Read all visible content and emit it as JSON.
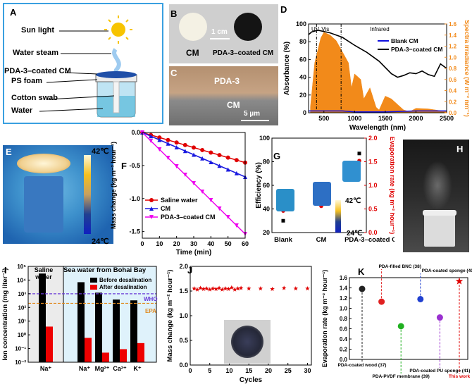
{
  "panels": {
    "a": {
      "letter": "A",
      "labels": [
        "Sun light",
        "Water steam",
        "PDA-3–coated CM",
        "PS foam",
        "Cotton swab",
        "Water"
      ]
    },
    "b": {
      "letter": "B",
      "scale": "1 cm",
      "left": "CM",
      "right": "PDA-3–coated CM"
    },
    "c": {
      "letter": "C",
      "top": "PDA-3",
      "bottom": "CM",
      "scale": "5 µm"
    },
    "d": {
      "letter": "D"
    },
    "e": {
      "letter": "E",
      "cb_top": "42℃",
      "cb_bottom": "24℃"
    },
    "f": {
      "letter": "F"
    },
    "g": {
      "letter": "G",
      "cb_top": "42℃",
      "cb_bottom": "24℃"
    },
    "h": {
      "letter": "H"
    },
    "i": {
      "letter": "I",
      "group1": "Saline water",
      "group2": "Sea water from Bohai Bay",
      "who": "WHO",
      "epa": "EPA"
    },
    "j": {
      "letter": "J"
    },
    "k": {
      "letter": "K"
    }
  },
  "chart_data": [
    {
      "id": "D",
      "type": "line",
      "xlabel": "Wavelength (nm)",
      "ylabel": "Absorbance (%)",
      "y2label": "Spectra irradiance (W m⁻² nm⁻¹)",
      "xlim": [
        250,
        2500
      ],
      "ylim": [
        0,
        100
      ],
      "y2lim": [
        0,
        1.6
      ],
      "xticks": [
        500,
        1000,
        1500,
        2000,
        2500
      ],
      "yticks": [
        0,
        20,
        40,
        60,
        80,
        100
      ],
      "y2ticks": [
        0.0,
        0.2,
        0.4,
        0.6,
        0.8,
        1.0,
        1.2,
        1.4,
        1.6
      ],
      "regions": [
        "UV",
        "Vis",
        "Infrared"
      ],
      "legend": [
        "Blank CM",
        "PDA-3−coated CM"
      ],
      "series": [
        {
          "name": "Blank CM",
          "color": "#1010e0",
          "x": [
            250,
            500,
            800,
            1000,
            1500,
            2000,
            2500
          ],
          "y": [
            2,
            2,
            2,
            1,
            1,
            2,
            2
          ]
        },
        {
          "name": "PDA-3−coated CM",
          "color": "#000000",
          "x": [
            250,
            300,
            400,
            600,
            800,
            1000,
            1200,
            1400,
            1600,
            1700,
            1800,
            1900,
            2000,
            2100,
            2200,
            2300,
            2400,
            2500
          ],
          "y": [
            88,
            91,
            93,
            90,
            85,
            76,
            68,
            58,
            44,
            40,
            42,
            45,
            44,
            47,
            43,
            41,
            55,
            50
          ]
        }
      ],
      "spectrum": {
        "color": "#f28a1a",
        "x": [
          280,
          350,
          450,
          500,
          600,
          700,
          800,
          900,
          950,
          1000,
          1100,
          1150,
          1250,
          1350,
          1400,
          1500,
          1600,
          1800,
          1900,
          2000,
          2200,
          2500
        ],
        "y": [
          0.1,
          0.9,
          1.35,
          1.45,
          1.4,
          1.3,
          1.1,
          0.9,
          0.45,
          0.7,
          0.6,
          0.25,
          0.45,
          0.1,
          0.05,
          0.3,
          0.25,
          0.05,
          0.02,
          0.08,
          0.07,
          0.02
        ]
      }
    },
    {
      "id": "F",
      "type": "line",
      "xlabel": "Time (min)",
      "ylabel": "Mass change (kg m⁻² hour⁻¹)",
      "xlim": [
        0,
        60
      ],
      "ylim": [
        -1.6,
        0
      ],
      "xticks": [
        0,
        10,
        20,
        30,
        40,
        50,
        60
      ],
      "yticks": [
        0.0,
        -0.5,
        -1.0,
        -1.5
      ],
      "series": [
        {
          "name": "Saline water",
          "color": "#e00000",
          "marker": "circle",
          "x": [
            0,
            5,
            10,
            15,
            20,
            25,
            30,
            35,
            40,
            45,
            50,
            55,
            60
          ],
          "y": [
            0,
            -0.038,
            -0.076,
            -0.114,
            -0.152,
            -0.19,
            -0.228,
            -0.266,
            -0.304,
            -0.342,
            -0.38,
            -0.418,
            -0.456
          ]
        },
        {
          "name": "CM",
          "color": "#1a1ae0",
          "marker": "triangle",
          "x": [
            0,
            5,
            10,
            15,
            20,
            25,
            30,
            35,
            40,
            45,
            50,
            55,
            60
          ],
          "y": [
            0,
            -0.056,
            -0.112,
            -0.168,
            -0.224,
            -0.28,
            -0.336,
            -0.392,
            -0.448,
            -0.504,
            -0.56,
            -0.616,
            -0.672
          ]
        },
        {
          "name": "PDA-3–coated CM",
          "color": "#ee00ee",
          "marker": "triangle-down",
          "x": [
            0,
            5,
            10,
            15,
            20,
            25,
            30,
            35,
            40,
            45,
            50,
            55,
            60
          ],
          "y": [
            0,
            -0.128,
            -0.256,
            -0.384,
            -0.512,
            -0.64,
            -0.768,
            -0.896,
            -1.024,
            -1.152,
            -1.28,
            -1.408,
            -1.536
          ]
        }
      ]
    },
    {
      "id": "G",
      "type": "scatter",
      "categories": [
        "Blank",
        "CM",
        "PDA-3–coated CM"
      ],
      "ylabel": "Efficiency (%)",
      "y2label": "Evaporation rate (kg m⁻² hour⁻¹)",
      "ylim": [
        20,
        100
      ],
      "y2lim": [
        0,
        2.0
      ],
      "yticks": [
        20,
        40,
        60,
        80,
        100
      ],
      "y2ticks": [
        0.0,
        0.5,
        1.0,
        1.5,
        2.0
      ],
      "series": [
        {
          "name": "Efficiency",
          "color": "#000000",
          "axis": "left",
          "values": [
            30,
            44,
            87
          ]
        },
        {
          "name": "Evaporation rate",
          "color": "#e00000",
          "axis": "right",
          "values": [
            0.46,
            0.56,
            1.52
          ]
        }
      ]
    },
    {
      "id": "I",
      "type": "bar",
      "log": true,
      "ylabel": "Ion concentration (mg liter⁻¹)",
      "categories": [
        "Na⁺",
        "Na⁺",
        "Mg²⁺",
        "Ca²⁺",
        "K⁺"
      ],
      "yticks": [
        "10⁻²",
        "10⁻¹",
        "10⁰",
        "10¹",
        "10²",
        "10³",
        "10⁴",
        "10⁵"
      ],
      "ylim": [
        0.01,
        100000
      ],
      "legend": [
        "Before desalination",
        "After desalination"
      ],
      "series": [
        {
          "name": "Before desalination",
          "color": "#000000",
          "values": [
            30000,
            7000,
            1200,
            380,
            330
          ]
        },
        {
          "name": "After desalination",
          "color": "#ee0000",
          "values": [
            4.0,
            0.6,
            0.05,
            0.09,
            0.25
          ]
        }
      ],
      "lines": [
        {
          "name": "WHO",
          "value": 1000,
          "color": "#6a3ad8"
        },
        {
          "name": "EPA",
          "value": 200,
          "color": "#e08a20"
        }
      ]
    },
    {
      "id": "J",
      "type": "scatter",
      "xlabel": "Cycles",
      "ylabel": "Mass change (kg m⁻² hour⁻¹)",
      "xlim": [
        0,
        31
      ],
      "ylim": [
        0,
        2.0
      ],
      "xticks": [
        0,
        5,
        10,
        15,
        20,
        25,
        30
      ],
      "yticks": [
        0.0,
        0.5,
        1.0,
        1.5,
        2.0
      ],
      "series": [
        {
          "name": "Mass change",
          "color": "#e00000",
          "x": [
            1,
            1.8,
            2.6,
            3.4,
            4.2,
            5,
            5.8,
            6.6,
            7.4,
            8.2,
            9,
            9.8,
            10.6,
            11.4,
            12.2,
            13,
            15,
            18,
            21,
            24,
            27,
            30
          ],
          "y": [
            1.55,
            1.53,
            1.56,
            1.54,
            1.55,
            1.53,
            1.55,
            1.54,
            1.56,
            1.53,
            1.55,
            1.54,
            1.57,
            1.53,
            1.55,
            1.56,
            1.55,
            1.55,
            1.54,
            1.56,
            1.55,
            1.55
          ]
        }
      ]
    },
    {
      "id": "K",
      "type": "scatter",
      "ylabel": "Evaporation rate (kg m⁻² hour⁻¹)",
      "ylim": [
        0,
        1.6
      ],
      "yticks": [
        0.0,
        0.2,
        0.4,
        0.6,
        0.8,
        1.0,
        1.2,
        1.4,
        1.6
      ],
      "points": [
        {
          "label": "PDA-coated wood (37)",
          "value": 1.38,
          "color": "#222222",
          "pos": "bottom"
        },
        {
          "label": "PDA-filled BNC (38)",
          "value": 1.13,
          "color": "#e02020",
          "pos": "top"
        },
        {
          "label": "PDA-PVDF membrane (39)",
          "value": 0.65,
          "color": "#20b020",
          "pos": "bottom"
        },
        {
          "label": "PDA-coated sponge (40)",
          "value": 1.18,
          "color": "#2040d0",
          "pos": "top"
        },
        {
          "label": "PDA-coated PU sponge (41)",
          "value": 0.82,
          "color": "#9a30d0",
          "pos": "bottom"
        },
        {
          "label": "This work",
          "value": 1.53,
          "color": "#e00000",
          "pos": "bottom",
          "star": true
        }
      ]
    }
  ]
}
